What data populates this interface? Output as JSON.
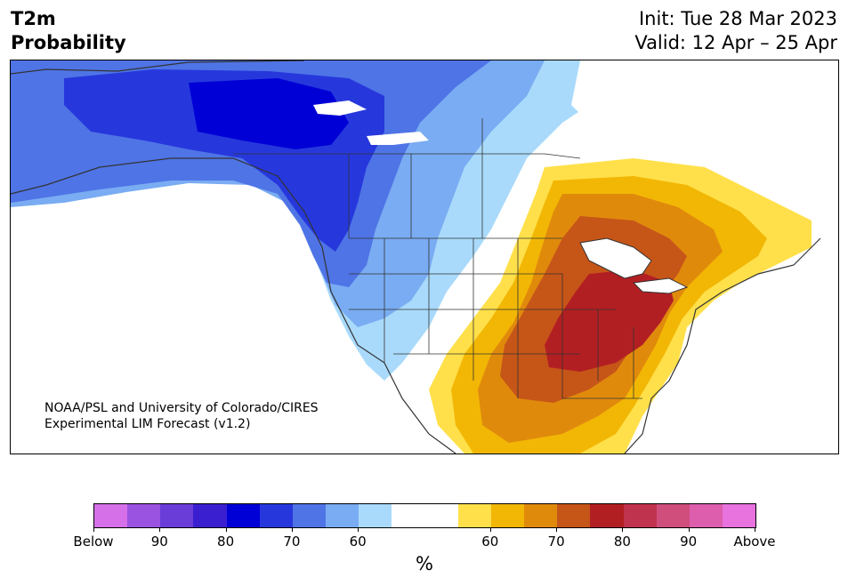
{
  "header": {
    "title_line1": "T2m",
    "title_line2": "Probability",
    "init_label": "Init: Tue 28 Mar 2023",
    "valid_label": "Valid: 12 Apr – 25 Apr"
  },
  "map": {
    "credit_line1": "NOAA/PSL and University of Colorado/CIRES",
    "credit_line2": "Experimental LIM Forecast (v1.2)",
    "features": [
      "north-america",
      "state-boundaries",
      "province-boundaries",
      "great-lakes",
      "coastlines"
    ]
  },
  "colorbar": {
    "colors": [
      "#d670e8",
      "#9a52e0",
      "#6a3cd8",
      "#3a1fd0",
      "#0000d6",
      "#2638dc",
      "#4f74e6",
      "#79acf2",
      "#a9dafb",
      "#ffffff",
      "#ffffff",
      "#ffe04a",
      "#f2b705",
      "#e08a0c",
      "#c65518",
      "#b21f22",
      "#c0334e",
      "#cf4e7c",
      "#dc5ead",
      "#e872de"
    ],
    "tick_labels": [
      "Below",
      "90",
      "80",
      "70",
      "60",
      "60",
      "70",
      "80",
      "90",
      "Above"
    ],
    "unit": "%"
  },
  "legend_colors": {
    "below_strong": "#0000d6",
    "below_moderate": "#4f74e6",
    "below_weak": "#a9dafb",
    "above_weak": "#ffe04a",
    "above_moderate": "#e08a0c",
    "above_strong": "#b21f22"
  }
}
